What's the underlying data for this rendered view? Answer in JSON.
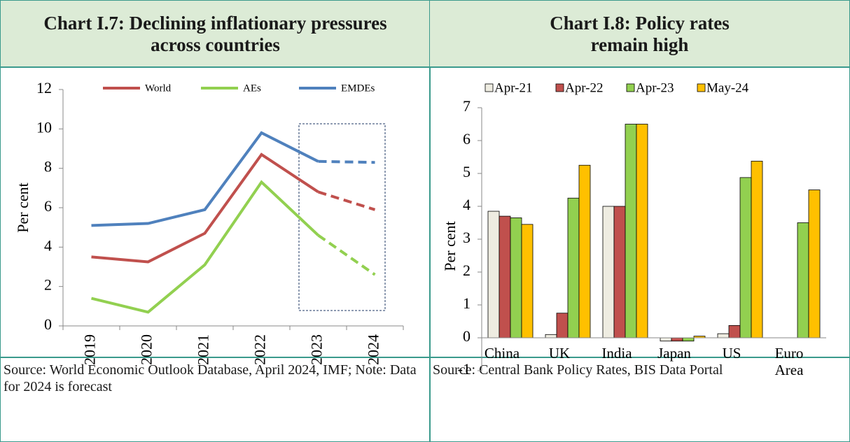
{
  "chart_data": [
    {
      "type": "line",
      "title": "Chart I.7: Declining inflationary pressures across countries",
      "y_label": "Per cent",
      "categories": [
        "2019",
        "2020",
        "2021",
        "2022",
        "2023",
        "2024"
      ],
      "series": [
        {
          "name": "World",
          "color": "#c0504d",
          "values": [
            3.5,
            3.25,
            4.7,
            8.7,
            6.8,
            5.9
          ]
        },
        {
          "name": "AEs",
          "color": "#92d050",
          "values": [
            1.4,
            0.7,
            3.1,
            7.3,
            4.6,
            2.6
          ]
        },
        {
          "name": "EMDEs",
          "color": "#4f81bd",
          "values": [
            5.1,
            5.2,
            5.9,
            9.8,
            8.35,
            8.3
          ]
        }
      ],
      "dashed_from": "2023",
      "ylim": [
        0,
        12
      ],
      "yticks": [
        0,
        2,
        4,
        6,
        8,
        10,
        12
      ],
      "source": "Source: World Economic Outlook Database, April 2024, IMF; Note: Data for 2024 is forecast"
    },
    {
      "type": "bar",
      "title": "Chart I.8: Policy rates remain high",
      "y_label": "Per cent",
      "categories": [
        "China",
        "UK",
        "India",
        "Japan",
        "US",
        "Euro Area"
      ],
      "series": [
        {
          "name": "Apr-21",
          "color": "#eeece1",
          "values": [
            3.85,
            0.1,
            4.0,
            -0.1,
            0.125,
            0
          ]
        },
        {
          "name": "Apr-22",
          "color": "#c0504d",
          "values": [
            3.7,
            0.75,
            4.0,
            -0.1,
            0.375,
            0
          ]
        },
        {
          "name": "Apr-23",
          "color": "#92d050",
          "values": [
            3.65,
            4.25,
            6.5,
            -0.1,
            4.875,
            3.5
          ]
        },
        {
          "name": "May-24",
          "color": "#ffc000",
          "values": [
            3.45,
            5.25,
            6.5,
            0.05,
            5.375,
            4.5
          ]
        }
      ],
      "ylim": [
        -1,
        7
      ],
      "yticks": [
        -1,
        0,
        1,
        2,
        3,
        4,
        5,
        6,
        7
      ],
      "source": "Source: Central Bank Policy Rates, BIS Data Portal"
    }
  ]
}
